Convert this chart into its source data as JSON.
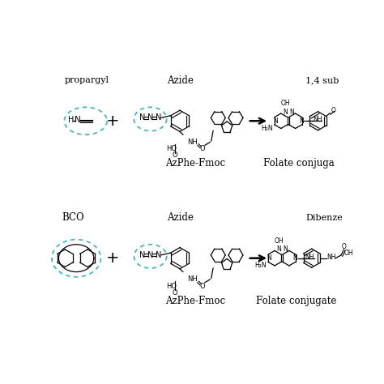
{
  "background_color": "#ffffff",
  "circle_color": "#4ab8b8",
  "line_color": "#000000",
  "text_color": "#000000",
  "top_row": {
    "label_propargyl": "propargyl",
    "label_azide": "Azide",
    "label_azphe": "AzPhe-Fmoc",
    "label_sub": "1,4 sub",
    "label_folate": "Folate conjuga"
  },
  "bottom_row": {
    "label_bco": "BCO",
    "label_azide": "Azide",
    "label_azphe": "AzPhe-Fmoc",
    "label_dibenz": "Dibenze",
    "label_folate": "Folate conjugate"
  }
}
